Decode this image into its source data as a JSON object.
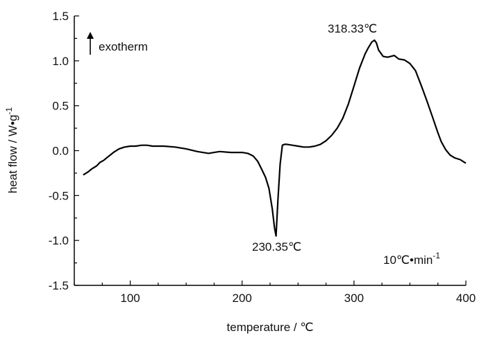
{
  "chart_data": {
    "type": "line",
    "title": "",
    "xlabel": "temperature / ℃",
    "ylabel_main": "heat flow / W•g",
    "ylabel_sup": "-1",
    "xlim": [
      50,
      400
    ],
    "ylim": [
      -1.5,
      1.5
    ],
    "xticks": [
      100,
      200,
      300,
      400
    ],
    "xtick_labels": [
      "100",
      "200",
      "300",
      "400"
    ],
    "yticks": [
      -1.5,
      -1.0,
      -0.5,
      0.0,
      0.5,
      1.0,
      1.5
    ],
    "ytick_labels": [
      "-1.5",
      "-1.0",
      "-0.5",
      "0.0",
      "0.5",
      "1.0",
      "1.5"
    ],
    "grid": false,
    "legend": "none",
    "line_color": "#000000",
    "series": [
      {
        "x": [
          58,
          62,
          66,
          70,
          73,
          76,
          80,
          85,
          90,
          95,
          100,
          105,
          110,
          115,
          120,
          125,
          130,
          140,
          150,
          160,
          170,
          175,
          180,
          190,
          200,
          205,
          210,
          214,
          218,
          221,
          224,
          227,
          229,
          230.35,
          232,
          234,
          236,
          238,
          240,
          245,
          250,
          255,
          260,
          265,
          270,
          275,
          280,
          285,
          290,
          295,
          300,
          305,
          310,
          313,
          316,
          318.33,
          320,
          322,
          326,
          330,
          333,
          336,
          340,
          345,
          350,
          355,
          360,
          365,
          370,
          375,
          378,
          382,
          386,
          390,
          395,
          400
        ],
        "y": [
          -0.27,
          -0.24,
          -0.2,
          -0.17,
          -0.13,
          -0.11,
          -0.07,
          -0.02,
          0.02,
          0.04,
          0.05,
          0.05,
          0.06,
          0.06,
          0.05,
          0.05,
          0.05,
          0.04,
          0.02,
          -0.01,
          -0.03,
          -0.02,
          -0.01,
          -0.02,
          -0.02,
          -0.03,
          -0.06,
          -0.12,
          -0.22,
          -0.3,
          -0.42,
          -0.65,
          -0.86,
          -0.95,
          -0.55,
          -0.15,
          0.06,
          0.07,
          0.07,
          0.06,
          0.05,
          0.04,
          0.04,
          0.05,
          0.07,
          0.11,
          0.17,
          0.25,
          0.36,
          0.52,
          0.72,
          0.92,
          1.08,
          1.15,
          1.21,
          1.23,
          1.2,
          1.12,
          1.05,
          1.04,
          1.05,
          1.06,
          1.02,
          1.01,
          0.97,
          0.89,
          0.73,
          0.56,
          0.38,
          0.2,
          0.1,
          0.01,
          -0.05,
          -0.08,
          -0.1,
          -0.14
        ]
      }
    ],
    "annotations": {
      "peak_exo": {
        "x": 318.33,
        "y": 1.23,
        "text": "318.33℃"
      },
      "peak_endo": {
        "x": 230.35,
        "y": -0.95,
        "text": "230.35℃"
      },
      "exotherm_label": "exotherm",
      "rate_main": "10℃•min",
      "rate_sup": "-1"
    }
  }
}
